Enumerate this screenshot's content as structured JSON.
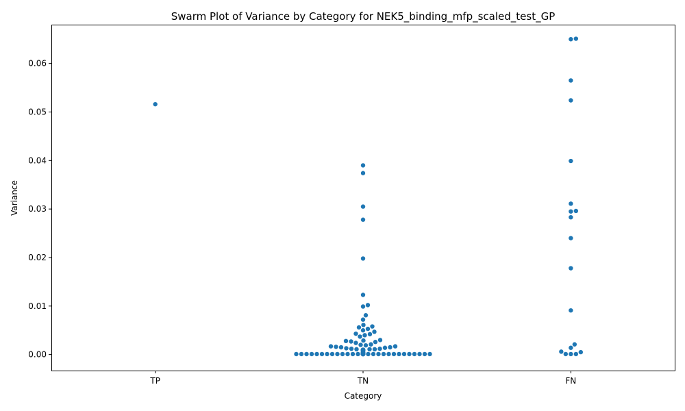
{
  "chart_data": {
    "type": "scatter",
    "subtype": "swarm",
    "title": "Swarm Plot of Variance by Category for NEK5_binding_mfp_scaled_test_GP",
    "xlabel": "Category",
    "ylabel": "Variance",
    "categories": [
      "TP",
      "TN",
      "FN"
    ],
    "ylim": [
      -0.0033,
      0.068
    ],
    "yticks": [
      0.0,
      0.01,
      0.02,
      0.03,
      0.04,
      0.05,
      0.06
    ],
    "ytick_labels": [
      "0.00",
      "0.01",
      "0.02",
      "0.03",
      "0.04",
      "0.05",
      "0.06"
    ],
    "grid": false,
    "color": "#1f77b4",
    "series": [
      {
        "category": "TP",
        "values": [
          0.0516
        ]
      },
      {
        "category": "TN",
        "values": [
          0.039,
          0.0374,
          0.0305,
          0.0278,
          0.0198,
          0.0123,
          0.0102,
          0.0099,
          0.0081,
          0.0072,
          0.0061,
          0.0058,
          0.0056,
          0.0053,
          0.005,
          0.0047,
          0.0043,
          0.0042,
          0.004,
          0.0037,
          0.003,
          0.0029,
          0.0028,
          0.0027,
          0.0026,
          0.0024,
          0.0021,
          0.002,
          0.0019,
          0.0017,
          0.0017,
          0.0016,
          0.0015,
          0.0015,
          0.0014,
          0.0013,
          0.0012,
          0.0012,
          0.0011,
          0.0011,
          0.0011,
          0.001,
          0.001,
          0.001,
          0.001,
          0.001,
          0.0009,
          0.0009,
          0.0009,
          0.0009,
          0.0008,
          0.0008,
          0.0008,
          0.0007,
          0.0006,
          0.0005,
          0.0005,
          0.0004,
          0.0004,
          0.0003,
          0.0003,
          0.0003,
          0.0003,
          0.0002,
          0.0002,
          0.0002,
          0.0002,
          0.0002,
          0.0002,
          0.0002,
          0.0001,
          0.0001,
          0.0001,
          0.0001,
          0.0001,
          0.0001,
          0.0001,
          0.0001,
          0.0001,
          0.0001,
          0.0001,
          0.0001,
          0.0001,
          0.0001,
          0.0001,
          0.0001,
          0.0001,
          0.0001,
          0.0001,
          0.0001,
          0.0001,
          0.0001,
          0.0001,
          0.0001,
          0.0001,
          0.0001,
          0.0001,
          0.0001,
          0.0001,
          0.0001,
          0.0001,
          0.0001,
          0.0001,
          0.0001,
          0.0001,
          0.0001,
          0.0001,
          0.0001,
          0.0001,
          0.0001,
          0.0001,
          0.0001,
          0.0001,
          0.0001,
          0.0001,
          0.0001,
          0.0001,
          0.0001,
          0.0001,
          0.0001,
          0.0001,
          0.0001,
          0.0001,
          0.0001,
          0.0001,
          0.0001,
          0.0001,
          0.0001,
          0.0001,
          0.0001,
          0.0001,
          0.0001,
          0.0001,
          0.0001,
          0.0001,
          0.0001,
          0.0001,
          0.0001,
          0.0001,
          0.0001,
          0.0001,
          0.0001,
          0.0001,
          0.0001,
          0.0001,
          0.0001,
          0.0001,
          0.0001,
          0.0001,
          0.0001,
          0.0001,
          0.0001,
          0.0001,
          0.0001,
          0.0001,
          0.0001,
          0.0001
        ]
      },
      {
        "category": "FN",
        "values": [
          0.0651,
          0.065,
          0.0565,
          0.0524,
          0.0399,
          0.0311,
          0.0296,
          0.0295,
          0.0283,
          0.024,
          0.0178,
          0.0091,
          0.0021,
          0.0014,
          0.0006,
          0.0005,
          0.0001,
          0.0001,
          0.0001
        ]
      }
    ]
  }
}
